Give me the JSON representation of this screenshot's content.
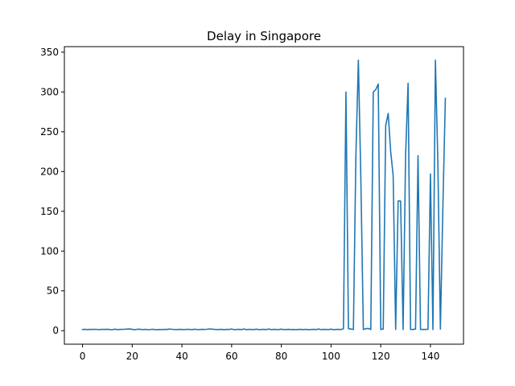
{
  "chart_data": {
    "type": "line",
    "title": "Delay in Singapore",
    "xlabel": "",
    "ylabel": "",
    "xlim": [
      -7.3,
      153.3
    ],
    "ylim": [
      -17,
      357
    ],
    "xticks": [
      0,
      20,
      40,
      60,
      80,
      100,
      120,
      140
    ],
    "yticks": [
      0,
      50,
      100,
      150,
      200,
      250,
      300,
      350
    ],
    "grid": false,
    "series": [
      {
        "color": "#1f77b4",
        "x": [
          0,
          1,
          2,
          3,
          4,
          5,
          6,
          7,
          8,
          9,
          10,
          11,
          12,
          13,
          14,
          15,
          16,
          17,
          18,
          19,
          20,
          21,
          22,
          23,
          24,
          25,
          26,
          27,
          28,
          29,
          30,
          31,
          32,
          33,
          34,
          35,
          36,
          37,
          38,
          39,
          40,
          41,
          42,
          43,
          44,
          45,
          46,
          47,
          48,
          49,
          50,
          51,
          52,
          53,
          54,
          55,
          56,
          57,
          58,
          59,
          60,
          61,
          62,
          63,
          64,
          65,
          66,
          67,
          68,
          69,
          70,
          71,
          72,
          73,
          74,
          75,
          76,
          77,
          78,
          79,
          80,
          81,
          82,
          83,
          84,
          85,
          86,
          87,
          88,
          89,
          90,
          91,
          92,
          93,
          94,
          95,
          96,
          97,
          98,
          99,
          100,
          101,
          102,
          103,
          104,
          105,
          106,
          107,
          108,
          109,
          110,
          111,
          112,
          113,
          114,
          115,
          116,
          117,
          118,
          119,
          120,
          121,
          122,
          123,
          124,
          125,
          126,
          127,
          128,
          129,
          130,
          131,
          132,
          133,
          134,
          135,
          136,
          137,
          138,
          139,
          140,
          141,
          142,
          143,
          144,
          145,
          146
        ],
        "y": [
          1.5,
          1.6,
          1.4,
          1.6,
          1.5,
          1.7,
          1.5,
          1.4,
          1.6,
          1.5,
          1.8,
          1.4,
          1.2,
          1.9,
          1.4,
          1.5,
          1.6,
          1.7,
          2.0,
          2.1,
          1.6,
          1.3,
          1.7,
          1.9,
          1.3,
          1.6,
          1.4,
          1.2,
          1.8,
          1.4,
          1.3,
          1.5,
          1.4,
          1.6,
          1.5,
          2.0,
          1.7,
          1.5,
          1.4,
          1.6,
          1.5,
          1.4,
          1.7,
          1.6,
          1.3,
          1.8,
          1.5,
          1.4,
          1.6,
          1.5,
          1.7,
          2.2,
          1.9,
          1.6,
          1.4,
          1.5,
          1.6,
          1.3,
          1.6,
          1.5,
          2.1,
          1.3,
          1.5,
          1.6,
          1.4,
          2.0,
          1.3,
          1.6,
          1.5,
          1.4,
          1.9,
          1.3,
          1.5,
          1.6,
          1.4,
          2.0,
          1.3,
          1.6,
          1.5,
          1.4,
          1.9,
          1.3,
          1.5,
          1.6,
          1.4,
          1.5,
          1.3,
          1.6,
          1.5,
          1.4,
          1.6,
          1.3,
          1.5,
          1.6,
          1.4,
          2.0,
          1.3,
          1.6,
          1.5,
          1.4,
          1.9,
          1.3,
          1.5,
          1.6,
          1.4,
          2.5,
          300,
          2.5,
          2.0,
          1.5,
          220,
          340,
          190,
          1.5,
          2.5,
          2.8,
          1.5,
          300,
          303,
          310,
          1.5,
          2.0,
          258,
          273,
          225,
          195,
          1.5,
          163,
          163,
          1.5,
          220,
          311,
          1.5,
          1.5,
          2.0,
          220,
          1.5,
          1.5,
          1.5,
          1.8,
          197,
          1.5,
          340,
          208,
          2.0,
          155,
          292
        ]
      }
    ]
  }
}
